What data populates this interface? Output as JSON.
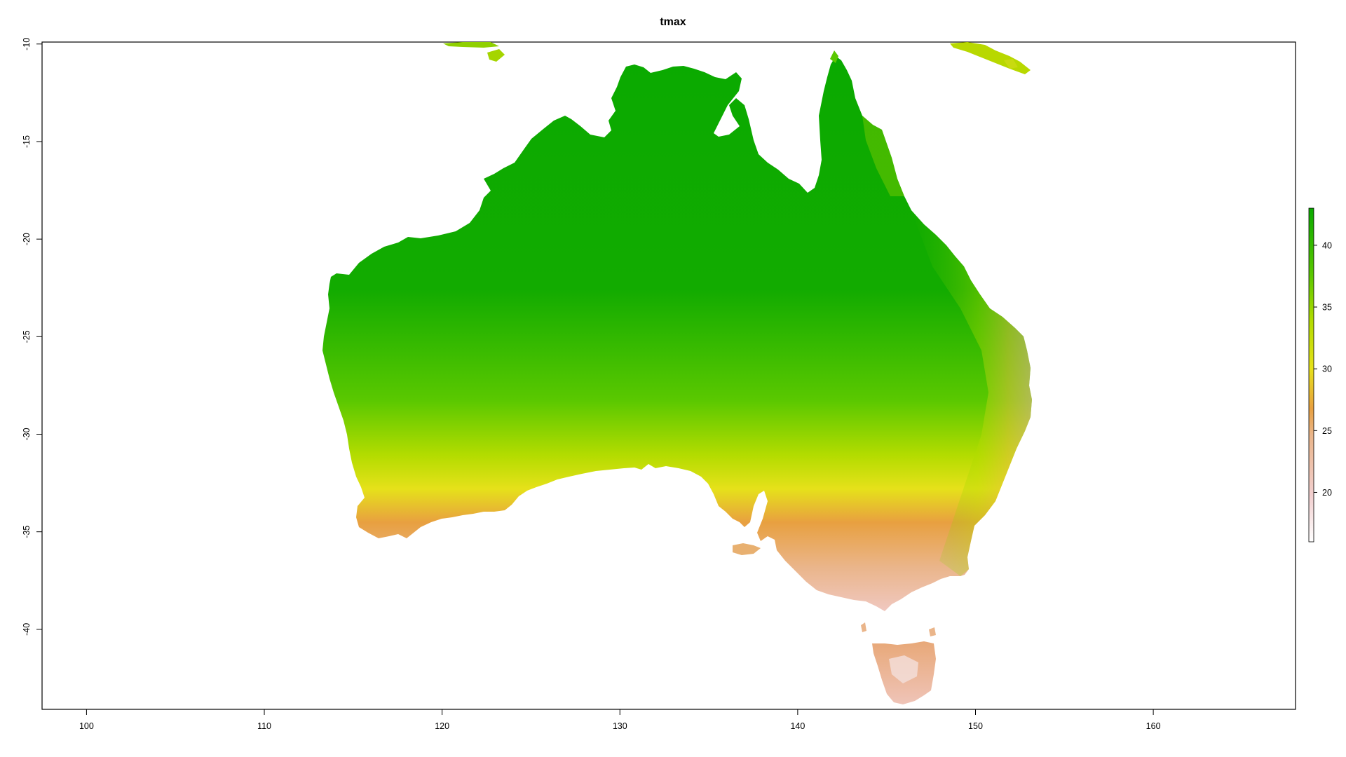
{
  "title": "tmax",
  "map": {
    "region": "Australia",
    "x_axis": {
      "ticks": [
        100,
        110,
        120,
        130,
        140,
        150,
        160
      ],
      "range": [
        97.5,
        168
      ]
    },
    "y_axis": {
      "ticks": [
        -10,
        -15,
        -20,
        -25,
        -30,
        -35,
        -40
      ],
      "range": [
        -44.1,
        -9.9
      ]
    },
    "color_scale": {
      "range": [
        16,
        43
      ],
      "colors": [
        "#ffffff",
        "#f2cfcf",
        "#eab58a",
        "#e8a040",
        "#e6e11a",
        "#b4dc00",
        "#5ac800",
        "#0aaa00"
      ],
      "legend_ticks": [
        20,
        25,
        30,
        35,
        40
      ]
    },
    "background_color": "#ffffff",
    "frame_color": "#000000"
  }
}
